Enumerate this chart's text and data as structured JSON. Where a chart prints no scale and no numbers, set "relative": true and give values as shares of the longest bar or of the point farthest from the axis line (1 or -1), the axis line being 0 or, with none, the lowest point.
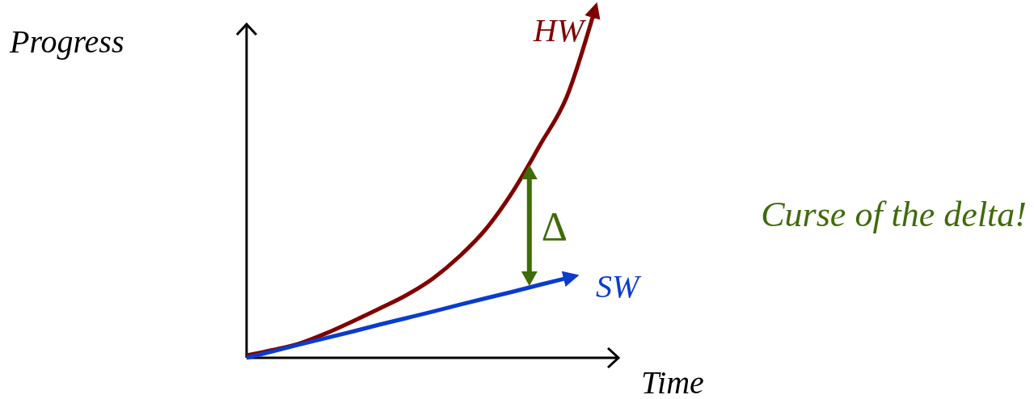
{
  "chart_data": {
    "type": "line",
    "relative": true,
    "xlabel": "Time",
    "ylabel": "Progress",
    "categories": [
      null,
      null,
      null,
      null,
      null,
      null,
      null,
      null,
      null,
      null,
      null,
      null,
      null,
      null
    ],
    "series": [
      {
        "name": "HW",
        "color": "#800000",
        "values": [
          0.007,
          0.023,
          0.042,
          0.072,
          0.107,
          0.144,
          0.183,
          0.232,
          0.297,
          0.378,
          0.487,
          0.62,
          0.76,
          1
        ]
      },
      {
        "name": "SW",
        "color": "#0a3ccc",
        "values": [
          0,
          0.019,
          0.039,
          0.058,
          0.077,
          0.097,
          0.116,
          0.135,
          0.155,
          0.174,
          0.193,
          0.213,
          0.232,
          null
        ]
      }
    ],
    "annotations": [
      "Δ",
      "Curse of the delta!"
    ]
  }
}
